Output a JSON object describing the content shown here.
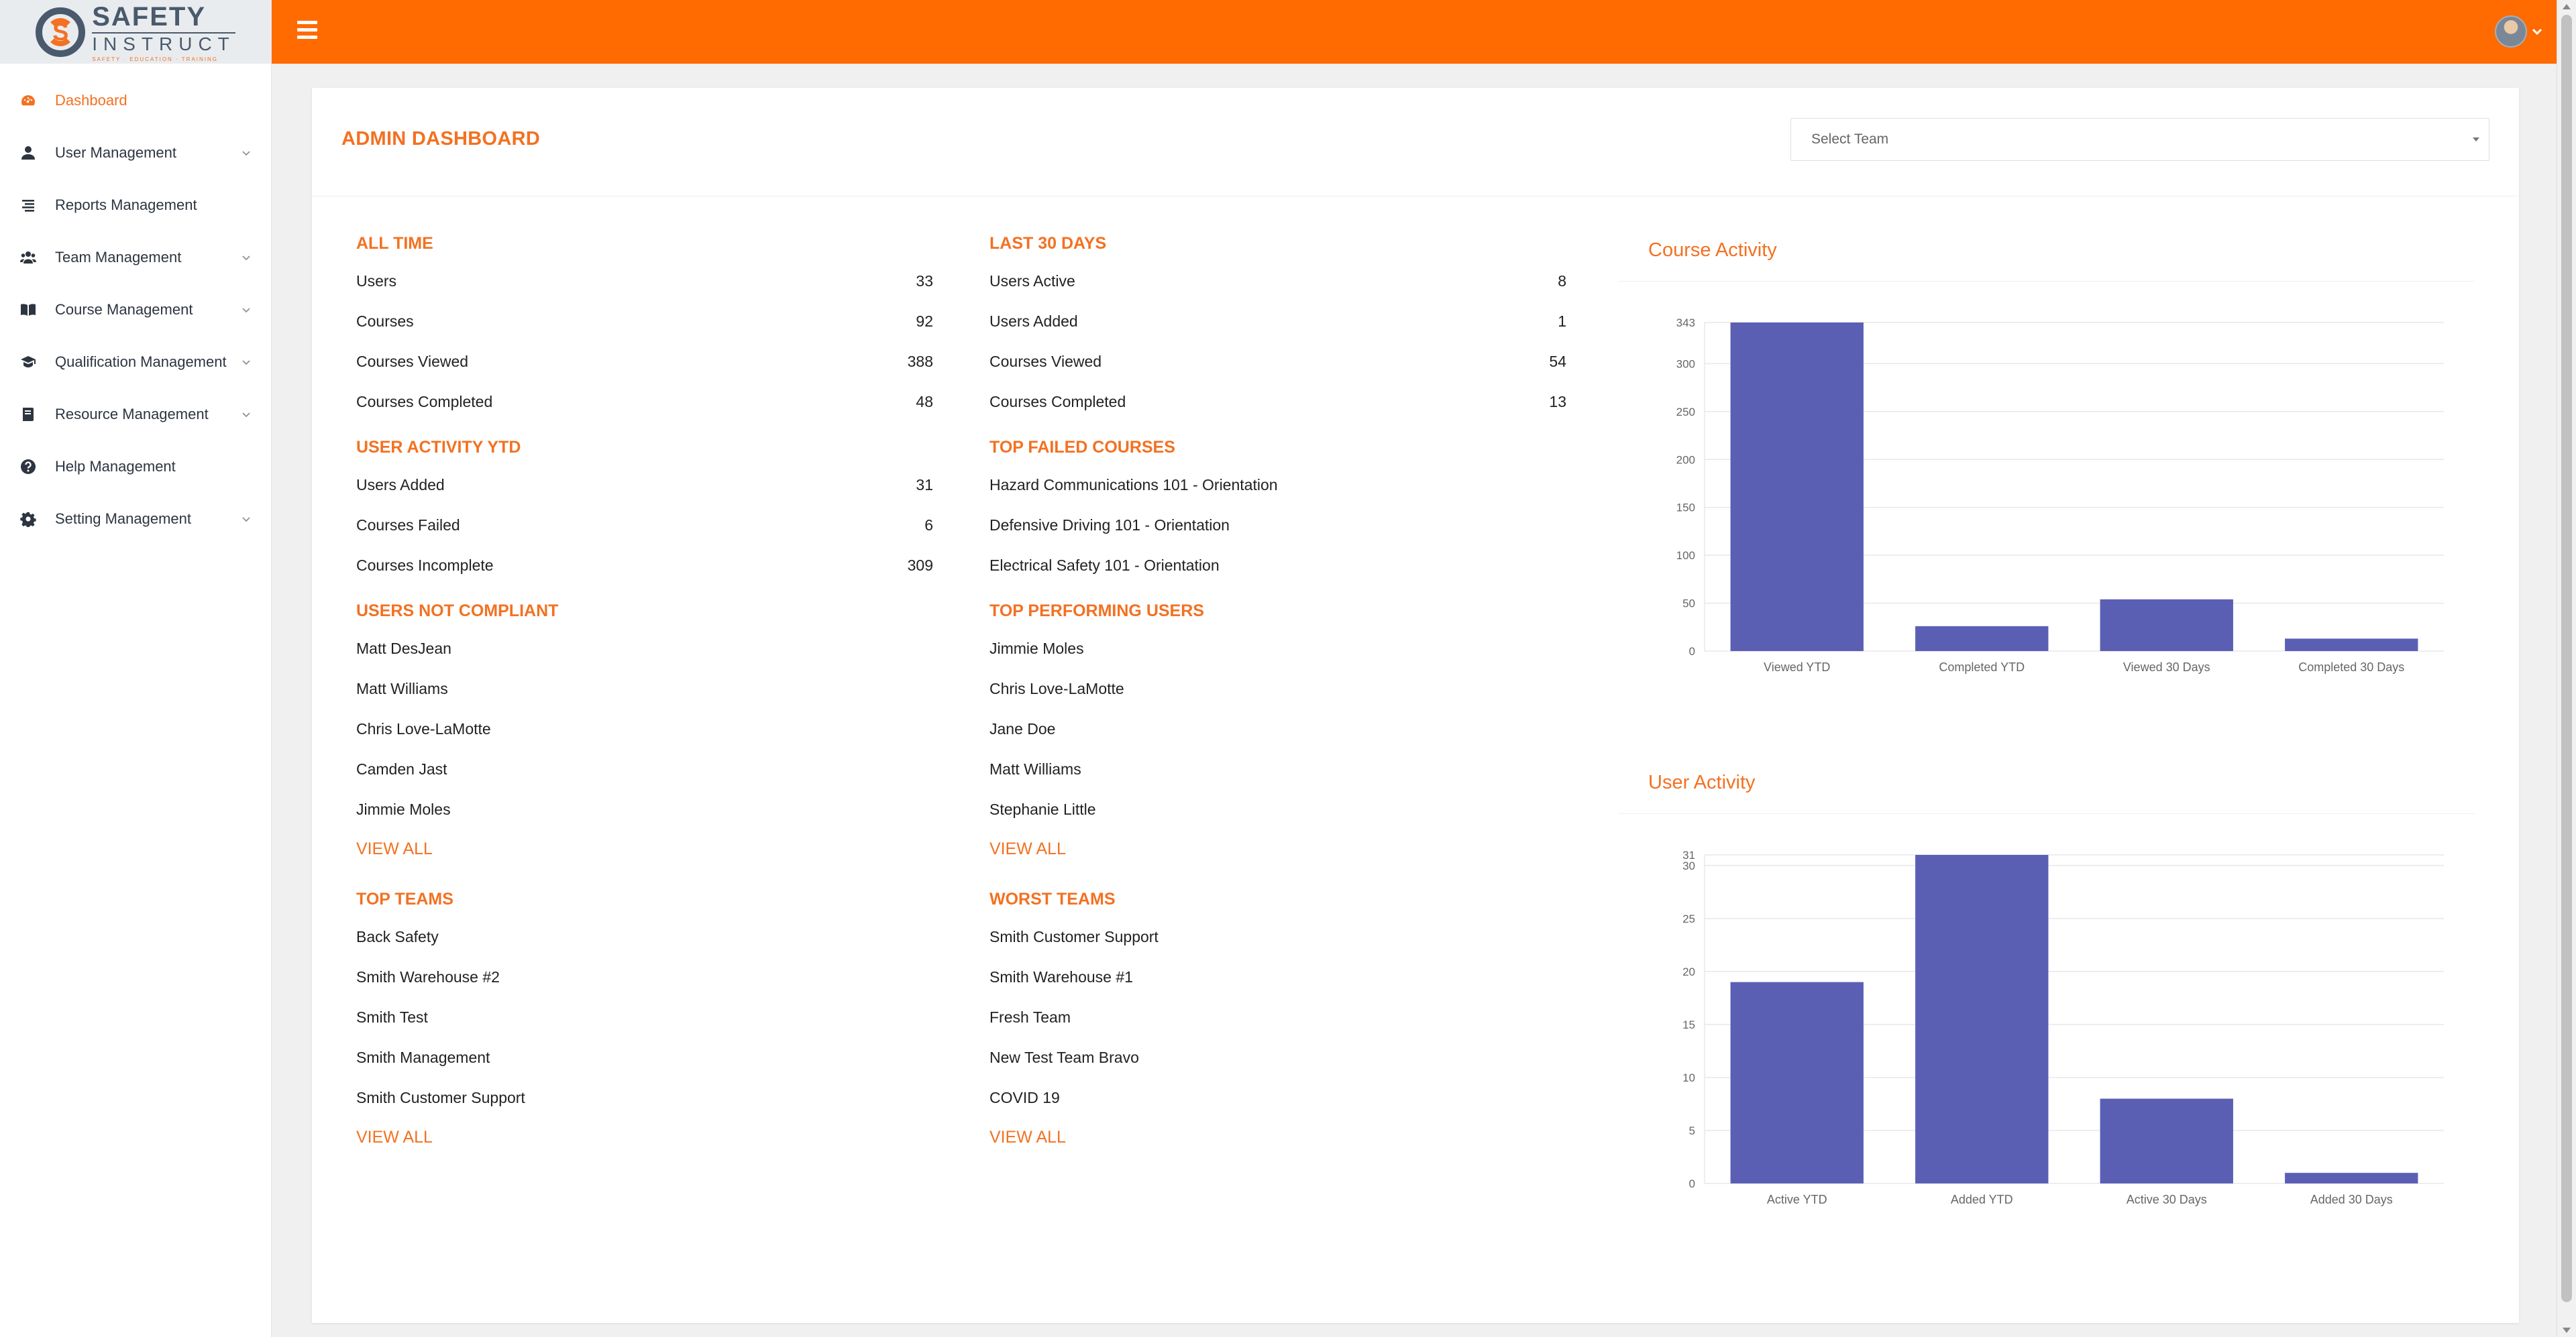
{
  "brand": {
    "line1": "SAFETY",
    "line2": "INSTRUCT",
    "tagline": "SAFETY · EDUCATION · TRAINING"
  },
  "sidebar": {
    "items": [
      {
        "label": "Dashboard",
        "icon": "dashboard-icon",
        "active": true,
        "has_children": false
      },
      {
        "label": "User Management",
        "icon": "user-icon",
        "active": false,
        "has_children": true
      },
      {
        "label": "Reports Management",
        "icon": "list-icon",
        "active": false,
        "has_children": false
      },
      {
        "label": "Team Management",
        "icon": "users-icon",
        "active": false,
        "has_children": true
      },
      {
        "label": "Course Management",
        "icon": "book-icon",
        "active": false,
        "has_children": true
      },
      {
        "label": "Qualification Management",
        "icon": "graduation-icon",
        "active": false,
        "has_children": true
      },
      {
        "label": "Resource Management",
        "icon": "book-closed-icon",
        "active": false,
        "has_children": true
      },
      {
        "label": "Help Management",
        "icon": "question-icon",
        "active": false,
        "has_children": false
      },
      {
        "label": "Setting Management",
        "icon": "gear-icon",
        "active": false,
        "has_children": true
      }
    ]
  },
  "header": {
    "title": "ADMIN DASHBOARD",
    "team_select_placeholder": "Select Team"
  },
  "all_time": {
    "title": "ALL TIME",
    "rows": [
      {
        "label": "Users",
        "value": "33"
      },
      {
        "label": "Courses",
        "value": "92"
      },
      {
        "label": "Courses Viewed",
        "value": "388"
      },
      {
        "label": "Courses Completed",
        "value": "48"
      }
    ]
  },
  "last_30_days": {
    "title": "LAST 30 DAYS",
    "rows": [
      {
        "label": "Users Active",
        "value": "8"
      },
      {
        "label": "Users Added",
        "value": "1"
      },
      {
        "label": "Courses Viewed",
        "value": "54"
      },
      {
        "label": "Courses Completed",
        "value": "13"
      }
    ]
  },
  "user_activity_ytd": {
    "title": "USER ACTIVITY YTD",
    "rows": [
      {
        "label": "Users Added",
        "value": "31"
      },
      {
        "label": "Courses Failed",
        "value": "6"
      },
      {
        "label": "Courses Incomplete",
        "value": "309"
      }
    ]
  },
  "top_failed_courses": {
    "title": "TOP FAILED COURSES",
    "items": [
      "Hazard Communications 101 - Orientation",
      "Defensive Driving 101 - Orientation",
      "Electrical Safety 101 - Orientation"
    ]
  },
  "users_not_compliant": {
    "title": "USERS NOT COMPLIANT",
    "items": [
      "Matt DesJean",
      "Matt Williams",
      "Chris Love-LaMotte",
      "Camden Jast",
      "Jimmie Moles"
    ],
    "view_all": "VIEW ALL"
  },
  "top_performing_users": {
    "title": "TOP PERFORMING USERS",
    "items": [
      "Jimmie Moles",
      "Chris Love-LaMotte",
      "Jane Doe",
      "Matt Williams",
      "Stephanie Little"
    ],
    "view_all": "VIEW ALL"
  },
  "top_teams": {
    "title": "TOP TEAMS",
    "items": [
      "Back Safety",
      "Smith Warehouse #2",
      "Smith Test",
      "Smith Management",
      "Smith Customer Support"
    ],
    "view_all": "VIEW ALL"
  },
  "worst_teams": {
    "title": "WORST TEAMS",
    "items": [
      "Smith Customer Support",
      "Smith Warehouse #1",
      "Fresh Team",
      "New Test Team Bravo",
      "COVID 19"
    ],
    "view_all": "VIEW ALL"
  },
  "colors": {
    "accent": "#f37121",
    "topbar": "#ff6b00",
    "bar": "#5b5fb4"
  },
  "chart_data": [
    {
      "type": "bar",
      "title": "Course Activity",
      "categories": [
        "Viewed YTD",
        "Completed YTD",
        "Viewed 30 Days",
        "Completed 30 Days"
      ],
      "values": [
        343,
        26,
        54,
        13
      ],
      "yticks": [
        0,
        50,
        100,
        150,
        200,
        250,
        300,
        343
      ],
      "ylim": [
        0,
        343
      ],
      "grid": true,
      "legend": "none"
    },
    {
      "type": "bar",
      "title": "User Activity",
      "categories": [
        "Active YTD",
        "Added YTD",
        "Active 30 Days",
        "Added 30 Days"
      ],
      "values": [
        19,
        31,
        8,
        1
      ],
      "yticks": [
        0,
        5,
        10,
        15,
        20,
        25,
        30,
        31
      ],
      "ylim": [
        0,
        31
      ],
      "grid": true,
      "legend": "none"
    }
  ]
}
